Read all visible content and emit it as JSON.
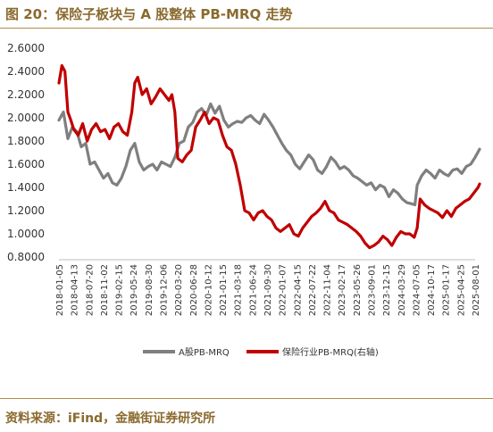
{
  "header": {
    "title": "图 20：保险子板块与 A 股整体 PB-MRQ 走势"
  },
  "footer": {
    "source": "资料来源：iFind，金融街证券研究所"
  },
  "colors": {
    "accent": "#b08d4a",
    "series_gray": "#7f7f7f",
    "series_red": "#c00000"
  },
  "chart_data": {
    "type": "line",
    "x_ticks": [
      "2018-01-05",
      "2018-04-13",
      "2018-07-20",
      "2018-11-02",
      "2019-02-15",
      "2019-05-24",
      "2019-08-30",
      "2019-12-06",
      "2020-03-20",
      "2020-06-28",
      "2020-10-12",
      "2021-01-15",
      "2021-03-18",
      "2021-06-24",
      "2021-09-30",
      "2022-01-07",
      "2022-04-15",
      "2022-07-22",
      "2022-11-04",
      "2023-02-17",
      "2023-05-26",
      "2023-09-01",
      "2023-12-15",
      "2024-03-29",
      "2024-07-05",
      "2024-10-17",
      "2025-01-17",
      "2025-04-25",
      "2025-08-01"
    ],
    "y_ticks": [
      "2.6000",
      "2.4000",
      "2.2000",
      "2.0000",
      "1.8000",
      "1.6000",
      "1.4000",
      "1.2000",
      "1.0000",
      "0.8000"
    ],
    "ylim": [
      0.8,
      2.6
    ],
    "series": [
      {
        "name": "A股PB-MRQ",
        "color": "#7f7f7f",
        "values": [
          [
            0,
            1.98
          ],
          [
            0.3,
            2.05
          ],
          [
            0.6,
            1.82
          ],
          [
            0.9,
            1.92
          ],
          [
            1.2,
            1.88
          ],
          [
            1.5,
            1.75
          ],
          [
            1.8,
            1.78
          ],
          [
            2.1,
            1.6
          ],
          [
            2.4,
            1.62
          ],
          [
            2.7,
            1.55
          ],
          [
            3.0,
            1.48
          ],
          [
            3.3,
            1.52
          ],
          [
            3.6,
            1.44
          ],
          [
            3.9,
            1.42
          ],
          [
            4.2,
            1.48
          ],
          [
            4.5,
            1.58
          ],
          [
            4.8,
            1.72
          ],
          [
            5.1,
            1.78
          ],
          [
            5.4,
            1.62
          ],
          [
            5.7,
            1.55
          ],
          [
            6.0,
            1.58
          ],
          [
            6.3,
            1.6
          ],
          [
            6.6,
            1.55
          ],
          [
            6.9,
            1.62
          ],
          [
            7.2,
            1.6
          ],
          [
            7.5,
            1.58
          ],
          [
            7.8,
            1.66
          ],
          [
            8.1,
            1.78
          ],
          [
            8.4,
            1.8
          ],
          [
            8.7,
            1.92
          ],
          [
            9.0,
            1.96
          ],
          [
            9.3,
            2.05
          ],
          [
            9.6,
            2.08
          ],
          [
            9.9,
            2.02
          ],
          [
            10.2,
            2.12
          ],
          [
            10.5,
            2.04
          ],
          [
            10.8,
            2.1
          ],
          [
            11.1,
            1.98
          ],
          [
            11.4,
            1.92
          ],
          [
            11.7,
            1.95
          ],
          [
            12.0,
            1.97
          ],
          [
            12.3,
            1.96
          ],
          [
            12.6,
            2.0
          ],
          [
            12.9,
            2.02
          ],
          [
            13.2,
            1.98
          ],
          [
            13.5,
            1.95
          ],
          [
            13.8,
            2.03
          ],
          [
            14.1,
            1.98
          ],
          [
            14.4,
            1.92
          ],
          [
            14.7,
            1.85
          ],
          [
            15.0,
            1.78
          ],
          [
            15.3,
            1.72
          ],
          [
            15.6,
            1.68
          ],
          [
            15.9,
            1.6
          ],
          [
            16.2,
            1.56
          ],
          [
            16.5,
            1.62
          ],
          [
            16.8,
            1.68
          ],
          [
            17.1,
            1.64
          ],
          [
            17.4,
            1.55
          ],
          [
            17.7,
            1.52
          ],
          [
            18.0,
            1.58
          ],
          [
            18.3,
            1.66
          ],
          [
            18.6,
            1.62
          ],
          [
            18.9,
            1.56
          ],
          [
            19.2,
            1.58
          ],
          [
            19.5,
            1.55
          ],
          [
            19.8,
            1.5
          ],
          [
            20.1,
            1.48
          ],
          [
            20.4,
            1.45
          ],
          [
            20.7,
            1.42
          ],
          [
            21.0,
            1.44
          ],
          [
            21.3,
            1.38
          ],
          [
            21.6,
            1.42
          ],
          [
            21.9,
            1.4
          ],
          [
            22.2,
            1.32
          ],
          [
            22.5,
            1.38
          ],
          [
            22.8,
            1.35
          ],
          [
            23.1,
            1.3
          ],
          [
            23.4,
            1.27
          ],
          [
            23.7,
            1.26
          ],
          [
            23.95,
            1.25
          ],
          [
            24.1,
            1.42
          ],
          [
            24.4,
            1.5
          ],
          [
            24.7,
            1.55
          ],
          [
            25.0,
            1.52
          ],
          [
            25.3,
            1.48
          ],
          [
            25.6,
            1.55
          ],
          [
            25.9,
            1.52
          ],
          [
            26.2,
            1.5
          ],
          [
            26.5,
            1.55
          ],
          [
            26.8,
            1.56
          ],
          [
            27.1,
            1.52
          ],
          [
            27.4,
            1.58
          ],
          [
            27.7,
            1.6
          ],
          [
            28.0,
            1.66
          ],
          [
            28.3,
            1.73
          ]
        ]
      },
      {
        "name": "保险行业PB-MRQ(右轴)",
        "color": "#c00000",
        "values": [
          [
            0,
            2.3
          ],
          [
            0.2,
            2.45
          ],
          [
            0.4,
            2.4
          ],
          [
            0.6,
            2.05
          ],
          [
            0.8,
            1.98
          ],
          [
            1.0,
            1.9
          ],
          [
            1.3,
            1.85
          ],
          [
            1.6,
            1.95
          ],
          [
            1.9,
            1.8
          ],
          [
            2.2,
            1.9
          ],
          [
            2.5,
            1.95
          ],
          [
            2.8,
            1.88
          ],
          [
            3.1,
            1.9
          ],
          [
            3.4,
            1.82
          ],
          [
            3.7,
            1.92
          ],
          [
            4.0,
            1.95
          ],
          [
            4.3,
            1.88
          ],
          [
            4.6,
            1.85
          ],
          [
            4.9,
            2.05
          ],
          [
            5.1,
            2.3
          ],
          [
            5.3,
            2.35
          ],
          [
            5.6,
            2.2
          ],
          [
            5.9,
            2.25
          ],
          [
            6.2,
            2.12
          ],
          [
            6.5,
            2.18
          ],
          [
            6.8,
            2.25
          ],
          [
            7.1,
            2.2
          ],
          [
            7.4,
            2.15
          ],
          [
            7.6,
            2.2
          ],
          [
            7.8,
            2.05
          ],
          [
            8.0,
            1.65
          ],
          [
            8.3,
            1.62
          ],
          [
            8.6,
            1.68
          ],
          [
            8.9,
            1.72
          ],
          [
            9.2,
            1.92
          ],
          [
            9.5,
            1.98
          ],
          [
            9.8,
            2.05
          ],
          [
            10.1,
            1.95
          ],
          [
            10.4,
            2.0
          ],
          [
            10.7,
            1.98
          ],
          [
            11.0,
            1.85
          ],
          [
            11.3,
            1.75
          ],
          [
            11.6,
            1.72
          ],
          [
            11.9,
            1.6
          ],
          [
            12.2,
            1.42
          ],
          [
            12.5,
            1.2
          ],
          [
            12.8,
            1.18
          ],
          [
            13.1,
            1.12
          ],
          [
            13.4,
            1.18
          ],
          [
            13.7,
            1.2
          ],
          [
            14.0,
            1.15
          ],
          [
            14.3,
            1.12
          ],
          [
            14.6,
            1.05
          ],
          [
            14.9,
            1.02
          ],
          [
            15.2,
            1.05
          ],
          [
            15.5,
            1.08
          ],
          [
            15.8,
            1.0
          ],
          [
            16.1,
            0.98
          ],
          [
            16.4,
            1.05
          ],
          [
            16.7,
            1.1
          ],
          [
            17.0,
            1.15
          ],
          [
            17.3,
            1.18
          ],
          [
            17.6,
            1.22
          ],
          [
            17.9,
            1.28
          ],
          [
            18.2,
            1.2
          ],
          [
            18.5,
            1.18
          ],
          [
            18.8,
            1.12
          ],
          [
            19.1,
            1.1
          ],
          [
            19.4,
            1.08
          ],
          [
            19.7,
            1.05
          ],
          [
            20.0,
            1.02
          ],
          [
            20.3,
            0.98
          ],
          [
            20.6,
            0.92
          ],
          [
            20.9,
            0.88
          ],
          [
            21.2,
            0.9
          ],
          [
            21.5,
            0.93
          ],
          [
            21.8,
            0.98
          ],
          [
            22.1,
            0.95
          ],
          [
            22.4,
            0.9
          ],
          [
            22.7,
            0.97
          ],
          [
            23.0,
            1.02
          ],
          [
            23.3,
            1.0
          ],
          [
            23.6,
            1.0
          ],
          [
            23.9,
            0.97
          ],
          [
            24.1,
            1.05
          ],
          [
            24.3,
            1.3
          ],
          [
            24.6,
            1.25
          ],
          [
            24.9,
            1.22
          ],
          [
            25.2,
            1.2
          ],
          [
            25.5,
            1.18
          ],
          [
            25.8,
            1.14
          ],
          [
            26.1,
            1.2
          ],
          [
            26.4,
            1.15
          ],
          [
            26.7,
            1.22
          ],
          [
            27.0,
            1.25
          ],
          [
            27.3,
            1.28
          ],
          [
            27.6,
            1.3
          ],
          [
            27.9,
            1.35
          ],
          [
            28.2,
            1.4
          ],
          [
            28.3,
            1.43
          ]
        ]
      }
    ],
    "legend": {
      "position": "bottom"
    }
  }
}
